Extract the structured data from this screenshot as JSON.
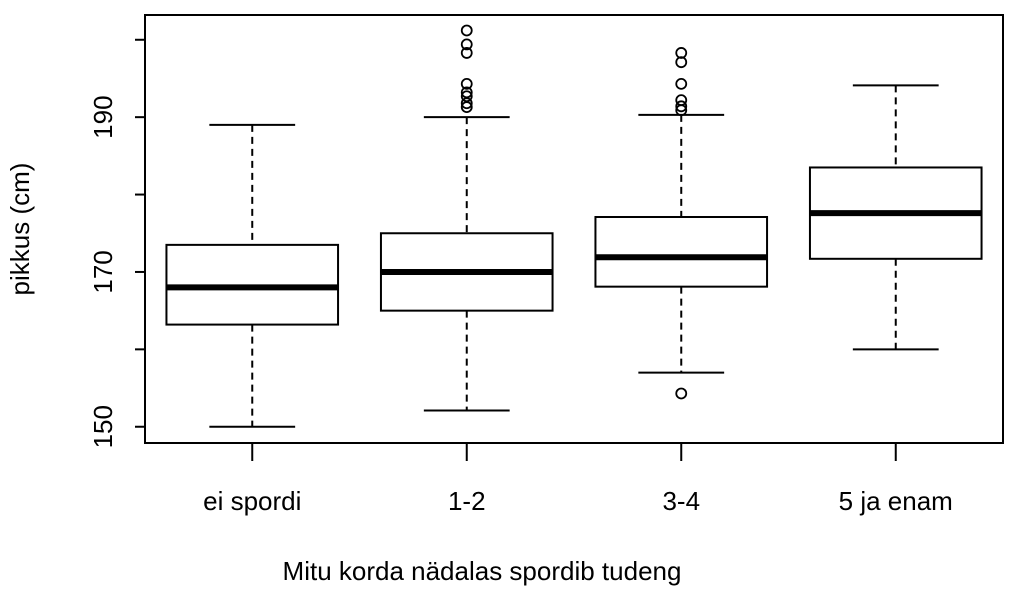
{
  "chart_data": {
    "type": "boxplot",
    "xlabel": "Mitu korda nädalas spordib tudeng",
    "ylabel": "pikkus (cm)",
    "categories": [
      "ei spordi",
      "1-2",
      "3-4",
      "5 ja enam"
    ],
    "boxes": [
      {
        "min": 150,
        "q1": 163.2,
        "median": 168,
        "q3": 173.5,
        "max": 189,
        "outliers": []
      },
      {
        "min": 152.1,
        "q1": 165,
        "median": 170,
        "q3": 175,
        "max": 190,
        "outliers": [
          201.2,
          199.4,
          198.3,
          194.3,
          193.2,
          192.7,
          191.8,
          191.3
        ]
      },
      {
        "min": 157,
        "q1": 168.1,
        "median": 171.9,
        "q3": 177.1,
        "max": 190.3,
        "outliers": [
          198.3,
          197.1,
          194.3,
          192.2,
          191.4,
          190.9,
          154.3
        ]
      },
      {
        "min": 160,
        "q1": 171.7,
        "median": 177.6,
        "q3": 183.5,
        "max": 194.1,
        "outliers": []
      }
    ],
    "color": "#000000",
    "ylim": [
      147.9,
      203.2
    ],
    "yticks": [
      150,
      170,
      190
    ],
    "yminorticks": [
      160,
      180,
      200
    ]
  }
}
